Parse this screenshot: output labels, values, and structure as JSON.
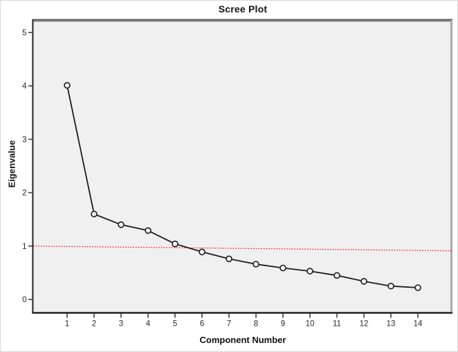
{
  "window": {
    "background": "#ffffff",
    "frame_border_color": "#d6d6d6"
  },
  "chart_data": {
    "type": "line",
    "title": "Scree Plot",
    "xlabel": "Component Number",
    "ylabel": "Eigenvalue",
    "x": [
      1,
      2,
      3,
      4,
      5,
      6,
      7,
      8,
      9,
      10,
      11,
      12,
      13,
      14
    ],
    "series": [
      {
        "name": "eigenvalue",
        "values": [
          4.01,
          1.6,
          1.4,
          1.29,
          1.04,
          0.89,
          0.76,
          0.66,
          0.59,
          0.53,
          0.45,
          0.34,
          0.25,
          0.22
        ]
      }
    ],
    "reference_line": {
      "start_value": 1.0,
      "end_value": 0.91,
      "style": "dotted",
      "color": "#ff0000"
    },
    "x_ticks": [
      1,
      2,
      3,
      4,
      5,
      6,
      7,
      8,
      9,
      10,
      11,
      12,
      13,
      14
    ],
    "y_ticks": [
      0,
      1,
      2,
      3,
      4,
      5
    ],
    "xlim": [
      -0.26,
      15.28
    ],
    "ylim": [
      -0.26,
      5.23
    ],
    "grid": false,
    "legend": "none",
    "marker": "open-circle",
    "colors": {
      "series_line": "#1c1c1c",
      "marker_stroke": "#1c1c1c",
      "panel_background": "#f0f0f0",
      "axis": "#333333",
      "tick": "#333333",
      "tick_label": "#262626",
      "panel_top_border_dark": "#4e4e4e",
      "panel_top_border_light": "#9b9b9b",
      "panel_right_border": "#a9a9a9"
    }
  }
}
